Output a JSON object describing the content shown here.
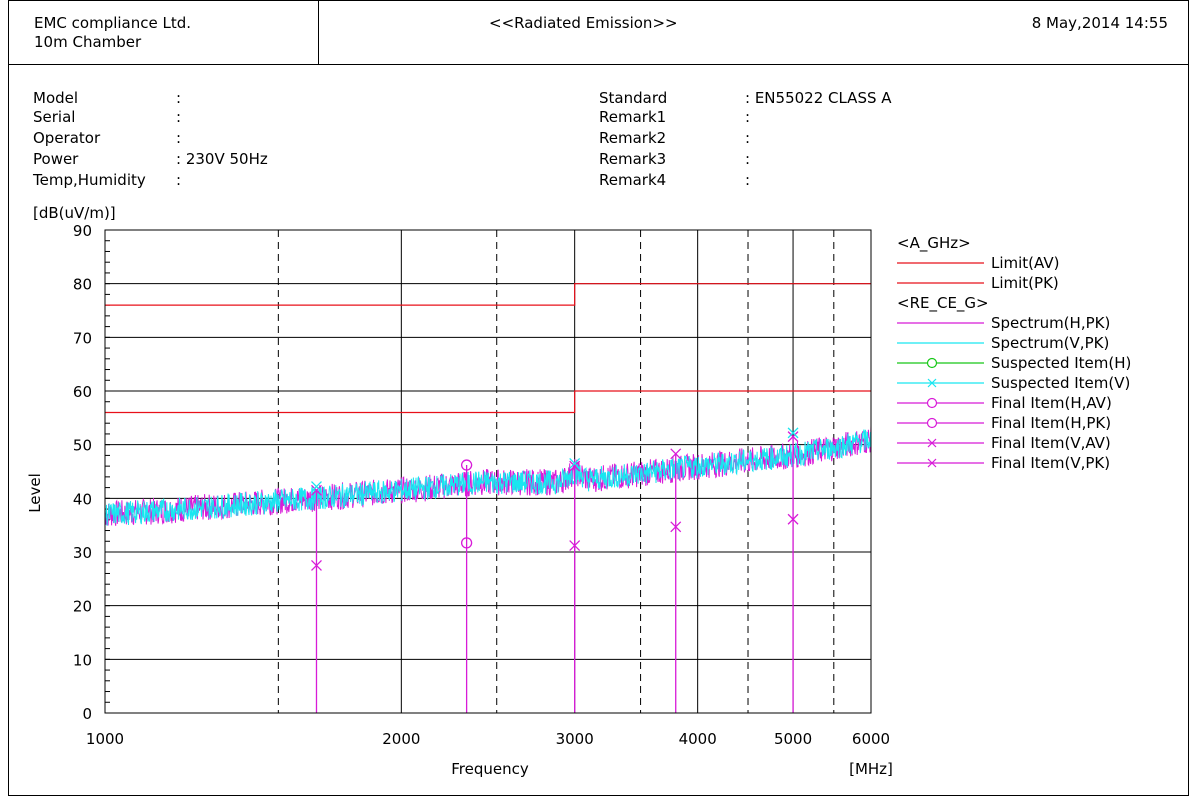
{
  "header": {
    "company": "EMC compliance Ltd.",
    "chamber": "10m Chamber",
    "title": "<<Radiated Emission>>",
    "datetime": "8 May,2014 14:55"
  },
  "info_left": [
    {
      "label": "Model",
      "value": ":"
    },
    {
      "label": "Serial",
      "value": ":"
    },
    {
      "label": "Operator",
      "value": ":"
    },
    {
      "label": "Power",
      "value": ": 230V 50Hz"
    },
    {
      "label": "Temp,Humidity",
      "value": ":"
    }
  ],
  "info_right": [
    {
      "label": "Standard",
      "value": ": EN55022 CLASS A"
    },
    {
      "label": "Remark1",
      "value": ":"
    },
    {
      "label": "Remark2",
      "value": ":"
    },
    {
      "label": "Remark3",
      "value": ":"
    },
    {
      "label": "Remark4",
      "value": ":"
    }
  ],
  "chart_data": {
    "type": "line",
    "ylabel": "Level",
    "yunit": "[dB(uV/m)]",
    "xlabel": "Frequency",
    "xunit": "[MHz]",
    "xscale": "log",
    "xlim": [
      1000,
      6000
    ],
    "ylim": [
      0,
      90
    ],
    "yticks": [
      0,
      10,
      20,
      30,
      40,
      50,
      60,
      70,
      80,
      90
    ],
    "xticks": [
      1000,
      2000,
      3000,
      4000,
      5000,
      6000
    ],
    "xtick_labels": [
      "1000",
      "2000",
      "3000",
      "4000",
      "5000",
      "6000"
    ],
    "x_dashed_lines": [
      1500,
      2500,
      3500,
      4500,
      5500
    ],
    "grid": true,
    "legend_position": "right",
    "legend_groups": [
      {
        "title": "<A_GHz>",
        "items": [
          {
            "name": "Limit(AV)",
            "color": "#e8101a",
            "marker": "none"
          },
          {
            "name": "Limit(PK)",
            "color": "#e8101a",
            "marker": "none"
          }
        ]
      },
      {
        "title": "<RE_CE_G>",
        "items": [
          {
            "name": "Spectrum(H,PK)",
            "color": "#d81bd8",
            "marker": "none"
          },
          {
            "name": "Spectrum(V,PK)",
            "color": "#19e6f0",
            "marker": "none"
          },
          {
            "name": "Suspected Item(H)",
            "color": "#17c817",
            "marker": "circle"
          },
          {
            "name": "Suspected Item(V)",
            "color": "#19e6f0",
            "marker": "x"
          },
          {
            "name": "Final Item(H,AV)",
            "color": "#d81bd8",
            "marker": "circle"
          },
          {
            "name": "Final Item(H,PK)",
            "color": "#d81bd8",
            "marker": "circle"
          },
          {
            "name": "Final Item(V,AV)",
            "color": "#d81bd8",
            "marker": "x"
          },
          {
            "name": "Final Item(V,PK)",
            "color": "#d81bd8",
            "marker": "x"
          }
        ]
      }
    ],
    "limits": [
      {
        "name": "Limit(AV)",
        "color": "#e8101a",
        "segments": [
          [
            1000,
            3000,
            56
          ],
          [
            3000,
            6000,
            60
          ]
        ]
      },
      {
        "name": "Limit(PK)",
        "color": "#e8101a",
        "segments": [
          [
            1000,
            3000,
            76
          ],
          [
            3000,
            6000,
            80
          ]
        ]
      }
    ],
    "spectrum": {
      "H_color": "#d81bd8",
      "V_color": "#19e6f0",
      "trend": [
        [
          1000,
          37
        ],
        [
          1500,
          39.5
        ],
        [
          2000,
          41.5
        ],
        [
          2400,
          43
        ],
        [
          2900,
          43
        ],
        [
          3000,
          45
        ],
        [
          3100,
          43.5
        ],
        [
          4000,
          46
        ],
        [
          5000,
          48
        ],
        [
          6000,
          51
        ]
      ]
    },
    "final_items": [
      {
        "freq": 1640,
        "h_av": null,
        "h_pk": null,
        "v_av": 27.5,
        "v_pk": 41.5
      },
      {
        "freq": 2330,
        "h_av": 31.7,
        "h_pk": 46.2,
        "v_av": null,
        "v_pk": null
      },
      {
        "freq": 3000,
        "h_av": null,
        "h_pk": null,
        "v_av": 31.2,
        "v_pk": 46.0
      },
      {
        "freq": 3800,
        "h_av": null,
        "h_pk": null,
        "v_av": 34.7,
        "v_pk": 48.3
      },
      {
        "freq": 5000,
        "h_av": null,
        "h_pk": null,
        "v_av": 36.1,
        "v_pk": 51.5
      }
    ],
    "suspected_items_v": [
      {
        "freq": 1640,
        "level": 42.2
      },
      {
        "freq": 3000,
        "level": 46.5
      },
      {
        "freq": 5000,
        "level": 52.2
      }
    ]
  }
}
